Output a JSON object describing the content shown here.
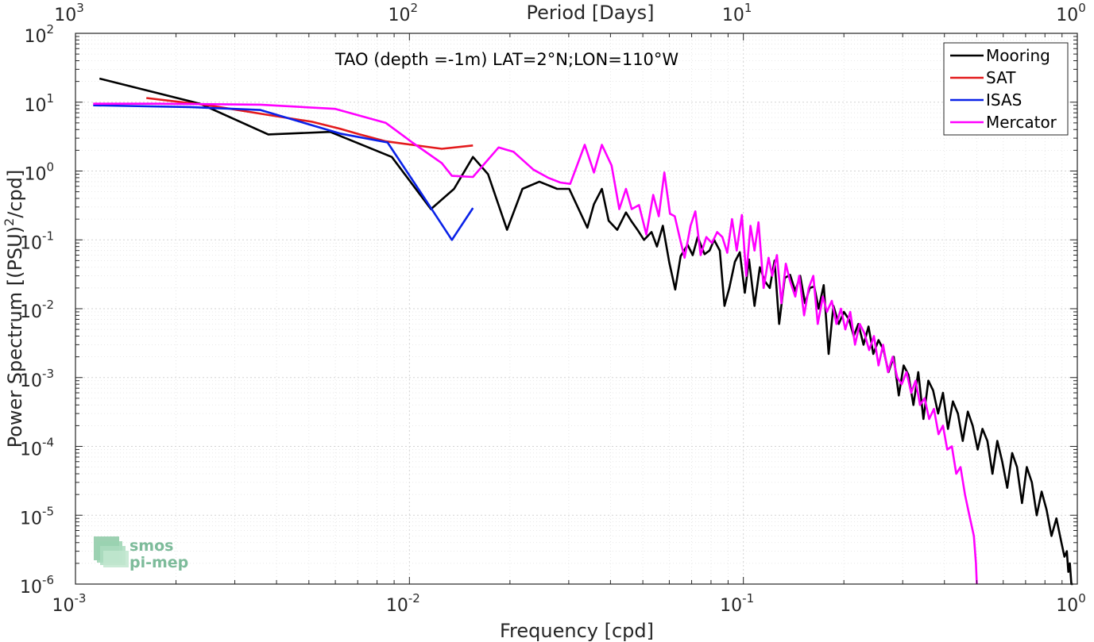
{
  "chart_data": {
    "type": "line",
    "title": "TAO (depth =-1m) LAT=2°N;LON=110°W",
    "xlabel": "Frequency [cpd]",
    "x2label": "Period [Days]",
    "ylabel": "Power Spectrum [(PSU)",
    "ylabel_sup": "2",
    "ylabel_tail": "/cpd]",
    "xscale": "log",
    "yscale": "log",
    "xlim": [
      0.001,
      1
    ],
    "ylim": [
      1e-06,
      100
    ],
    "grid": true,
    "legend_position": "top-right",
    "x_ticks": [
      {
        "base": "10",
        "exp": "-3"
      },
      {
        "base": "10",
        "exp": "-2"
      },
      {
        "base": "10",
        "exp": "-1"
      },
      {
        "base": "10",
        "exp": "0"
      }
    ],
    "x2_ticks": [
      {
        "base": "10",
        "exp": "3"
      },
      {
        "base": "10",
        "exp": "2"
      },
      {
        "base": "10",
        "exp": "1"
      },
      {
        "base": "10",
        "exp": "0"
      }
    ],
    "y_ticks": [
      {
        "base": "10",
        "exp": "-6"
      },
      {
        "base": "10",
        "exp": "-5"
      },
      {
        "base": "10",
        "exp": "-4"
      },
      {
        "base": "10",
        "exp": "-3"
      },
      {
        "base": "10",
        "exp": "-2"
      },
      {
        "base": "10",
        "exp": "-1"
      },
      {
        "base": "10",
        "exp": "0"
      },
      {
        "base": "10",
        "exp": "1"
      },
      {
        "base": "10",
        "exp": "2"
      }
    ],
    "series": [
      {
        "name": "Mooring",
        "color": "#000000",
        "x": [
          0.00118,
          0.00236,
          0.00378,
          0.00579,
          0.00886,
          0.0116,
          0.0136,
          0.0155,
          0.0172,
          0.0196,
          0.0218,
          0.0245,
          0.0277,
          0.0301,
          0.0341,
          0.0357,
          0.0377,
          0.0395,
          0.0419,
          0.0445,
          0.0461,
          0.0482,
          0.0504,
          0.0531,
          0.0551,
          0.0574,
          0.06,
          0.0625,
          0.0649,
          0.0681,
          0.0705,
          0.073,
          0.0765,
          0.0792,
          0.0817,
          0.085,
          0.0878,
          0.0908,
          0.0943,
          0.0976,
          0.101,
          0.104,
          0.108,
          0.112,
          0.116,
          0.12,
          0.124,
          0.128,
          0.133,
          0.138,
          0.143,
          0.148,
          0.153,
          0.158,
          0.163,
          0.168,
          0.174,
          0.18,
          0.186,
          0.193,
          0.2,
          0.207,
          0.214,
          0.221,
          0.229,
          0.237,
          0.245,
          0.254,
          0.263,
          0.272,
          0.282,
          0.292,
          0.302,
          0.312,
          0.323,
          0.334,
          0.346,
          0.358,
          0.37,
          0.383,
          0.396,
          0.41,
          0.424,
          0.439,
          0.454,
          0.47,
          0.486,
          0.503,
          0.52,
          0.538,
          0.557,
          0.576,
          0.596,
          0.617,
          0.638,
          0.66,
          0.683,
          0.706,
          0.731,
          0.756,
          0.782,
          0.809,
          0.837,
          0.866,
          0.896,
          0.915,
          0.93,
          0.94,
          0.95,
          0.96,
          0.97
        ],
        "y": [
          22,
          9.5,
          3.4,
          3.7,
          1.6,
          0.28,
          0.55,
          1.6,
          0.9,
          0.14,
          0.55,
          0.7,
          0.55,
          0.55,
          0.15,
          0.33,
          0.55,
          0.19,
          0.14,
          0.25,
          0.19,
          0.14,
          0.1,
          0.13,
          0.08,
          0.16,
          0.047,
          0.019,
          0.058,
          0.085,
          0.06,
          0.11,
          0.062,
          0.07,
          0.1,
          0.07,
          0.011,
          0.02,
          0.048,
          0.066,
          0.017,
          0.052,
          0.011,
          0.04,
          0.025,
          0.02,
          0.05,
          0.006,
          0.028,
          0.031,
          0.018,
          0.03,
          0.012,
          0.02,
          0.021,
          0.01,
          0.022,
          0.0022,
          0.011,
          0.006,
          0.009,
          0.007,
          0.004,
          0.006,
          0.003,
          0.0055,
          0.0022,
          0.0035,
          0.0025,
          0.0012,
          0.002,
          0.00055,
          0.0015,
          0.0011,
          0.0004,
          0.0012,
          0.00025,
          0.0009,
          0.00065,
          0.0003,
          0.0006,
          0.00018,
          0.00045,
          0.0003,
          0.00012,
          0.00032,
          0.0002,
          9e-05,
          0.00018,
          0.00012,
          4e-05,
          0.00012,
          6e-05,
          2.5e-05,
          8e-05,
          5e-05,
          1.5e-05,
          5e-05,
          3e-05,
          1e-05,
          2.2e-05,
          1.2e-05,
          5e-06,
          9e-06,
          4e-06,
          2.5e-06,
          3e-06,
          1.5e-06,
          2e-06,
          1e-06,
          1e-06
        ]
      },
      {
        "name": "SAT",
        "color": "#e31a1c",
        "x": [
          0.00163,
          0.0025,
          0.0038,
          0.0051,
          0.0062,
          0.0071,
          0.0085,
          0.0102,
          0.0125,
          0.0155
        ],
        "y": [
          11.5,
          9.0,
          6.5,
          5.2,
          4.1,
          3.4,
          2.7,
          2.4,
          2.1,
          2.35
        ]
      },
      {
        "name": "ISAS",
        "color": "#0a22e8",
        "x": [
          0.00113,
          0.0022,
          0.00358,
          0.0062,
          0.0086,
          0.0114,
          0.0134,
          0.0155
        ],
        "y": [
          9.0,
          8.5,
          7.7,
          3.5,
          2.6,
          0.33,
          0.1,
          0.29
        ]
      },
      {
        "name": "Mercator",
        "color": "#ff00ff",
        "x": [
          0.00113,
          0.00175,
          0.00358,
          0.006,
          0.0085,
          0.0102,
          0.0125,
          0.0134,
          0.0155,
          0.0185,
          0.0205,
          0.0235,
          0.026,
          0.0283,
          0.0303,
          0.0335,
          0.0357,
          0.0377,
          0.0403,
          0.0425,
          0.0445,
          0.0463,
          0.0487,
          0.0512,
          0.0537,
          0.0558,
          0.058,
          0.0603,
          0.0623,
          0.0647,
          0.0667,
          0.0695,
          0.0718,
          0.0745,
          0.0775,
          0.0805,
          0.0835,
          0.0865,
          0.0895,
          0.0925,
          0.0955,
          0.099,
          0.102,
          0.105,
          0.108,
          0.111,
          0.115,
          0.119,
          0.122,
          0.126,
          0.13,
          0.134,
          0.138,
          0.143,
          0.147,
          0.152,
          0.157,
          0.162,
          0.167,
          0.173,
          0.178,
          0.184,
          0.19,
          0.196,
          0.202,
          0.209,
          0.216,
          0.223,
          0.23,
          0.238,
          0.246,
          0.254,
          0.262,
          0.271,
          0.28,
          0.289,
          0.298,
          0.308,
          0.318,
          0.328,
          0.338,
          0.349,
          0.36,
          0.372,
          0.384,
          0.396,
          0.408,
          0.421,
          0.434,
          0.447,
          0.461,
          0.475,
          0.49,
          0.497,
          0.5
        ],
        "y": [
          9.5,
          9.5,
          9.2,
          8.0,
          5.0,
          2.6,
          1.3,
          0.85,
          0.82,
          2.2,
          1.9,
          1.05,
          0.8,
          0.68,
          0.65,
          2.4,
          0.95,
          2.4,
          1.2,
          0.28,
          0.55,
          0.28,
          0.32,
          0.12,
          0.45,
          0.22,
          0.95,
          0.24,
          0.22,
          0.1,
          0.055,
          0.16,
          0.26,
          0.06,
          0.11,
          0.09,
          0.13,
          0.11,
          0.065,
          0.2,
          0.07,
          0.23,
          0.03,
          0.16,
          0.07,
          0.18,
          0.02,
          0.055,
          0.03,
          0.06,
          0.012,
          0.045,
          0.025,
          0.015,
          0.03,
          0.008,
          0.02,
          0.03,
          0.006,
          0.015,
          0.009,
          0.013,
          0.006,
          0.01,
          0.005,
          0.009,
          0.003,
          0.006,
          0.0045,
          0.0025,
          0.004,
          0.0015,
          0.003,
          0.0012,
          0.002,
          0.001,
          0.0008,
          0.0012,
          0.0006,
          0.0009,
          0.0004,
          0.0005,
          0.00025,
          0.00035,
          0.00015,
          0.0002,
          9e-05,
          0.0001,
          4e-05,
          5e-05,
          2e-05,
          1e-05,
          5e-06,
          2e-06,
          1e-06
        ]
      }
    ]
  },
  "watermark": {
    "line1": "smos",
    "line2": "pi-mep",
    "color": "#6fb490"
  }
}
